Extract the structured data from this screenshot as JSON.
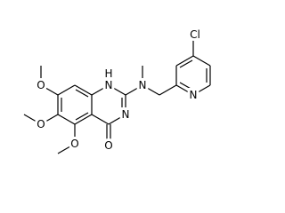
{
  "atoms": [
    "O",
    "O",
    "O",
    "O",
    "H",
    "N",
    "N",
    "N",
    "N",
    "Cl"
  ]
}
